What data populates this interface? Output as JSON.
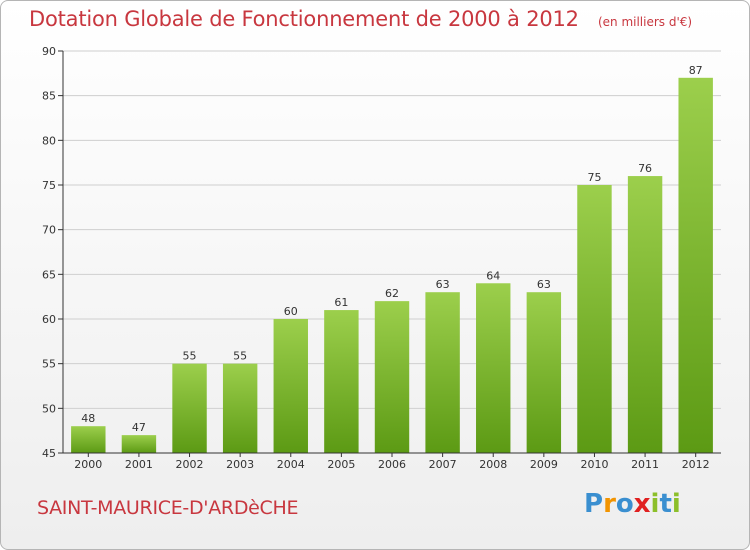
{
  "title": "Dotation Globale de Fonctionnement de 2000 à 2012",
  "unit_note": "(en milliers d'€)",
  "commune": "SAINT-MAURICE-D'ARDèCHE",
  "logo": {
    "text": "Proxiti",
    "letters": [
      "P",
      "r",
      "o",
      "x",
      "i",
      "t",
      "i"
    ],
    "colors": [
      "#3a8fd0",
      "#f29400",
      "#3a8fd0",
      "#e02020",
      "#8cbf2a",
      "#3a8fd0",
      "#8cbf2a"
    ]
  },
  "colors": {
    "title": "#c8373f",
    "bar_top": "#9ccf4c",
    "bar_bottom": "#5c9a14",
    "axis": "#333333",
    "grid": "#cfcfcf"
  },
  "chart_data": {
    "type": "bar",
    "title": "Dotation Globale de Fonctionnement de 2000 à 2012",
    "subtitle": "(en milliers d'€)",
    "xlabel": "",
    "ylabel": "",
    "categories": [
      "2000",
      "2001",
      "2002",
      "2003",
      "2004",
      "2005",
      "2006",
      "2007",
      "2008",
      "2009",
      "2010",
      "2011",
      "2012"
    ],
    "values": [
      48,
      47,
      55,
      55,
      60,
      61,
      62,
      63,
      64,
      63,
      75,
      76,
      87
    ],
    "ylim": [
      45,
      90
    ],
    "yticks": [
      45,
      50,
      55,
      60,
      65,
      70,
      75,
      80,
      85,
      90
    ],
    "grid": true,
    "data_labels": true
  }
}
